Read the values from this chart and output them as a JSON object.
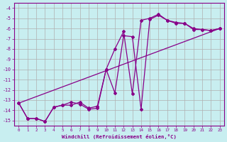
{
  "bg_color": "#c8eef0",
  "grid_color": "#b0b0b0",
  "line_color": "#880088",
  "xlabel": "Windchill (Refroidissement éolien,°C)",
  "ylabel_ticks": [
    -4,
    -5,
    -6,
    -7,
    -8,
    -9,
    -10,
    -11,
    -12,
    -13,
    -14,
    -15
  ],
  "xlim": [
    -0.5,
    23.5
  ],
  "ylim": [
    -15.5,
    -3.5
  ],
  "xticks": [
    0,
    1,
    2,
    3,
    4,
    5,
    6,
    7,
    8,
    9,
    10,
    11,
    12,
    13,
    14,
    15,
    16,
    17,
    18,
    19,
    20,
    21,
    22,
    23
  ],
  "line1_x": [
    0,
    1,
    2,
    3,
    4,
    5,
    6,
    7,
    8,
    9,
    10,
    11,
    12,
    13,
    14,
    15,
    16,
    17,
    18,
    19,
    20,
    21,
    22,
    23
  ],
  "line1_y": [
    -13.3,
    -14.8,
    -14.8,
    -15.1,
    -13.7,
    -13.5,
    -13.5,
    -13.2,
    -13.8,
    -13.6,
    -10.0,
    -8.0,
    -6.3,
    -12.4,
    -5.2,
    -5.0,
    -4.6,
    -5.2,
    -5.4,
    -5.5,
    -6.0,
    -6.1,
    -6.2,
    -6.0
  ],
  "line2_x": [
    0,
    1,
    2,
    3,
    4,
    5,
    6,
    7,
    8,
    9,
    10,
    11,
    12,
    13,
    14,
    15,
    16,
    17,
    18,
    19,
    20,
    21,
    22,
    23
  ],
  "line2_y": [
    -13.3,
    -14.8,
    -14.8,
    -15.1,
    -13.7,
    -13.5,
    -13.2,
    -13.4,
    -13.9,
    -13.8,
    -10.0,
    -12.3,
    -6.7,
    -6.8,
    -13.9,
    -5.1,
    -4.7,
    -5.2,
    -5.5,
    -5.5,
    -6.1,
    -6.1,
    -6.2,
    -6.0
  ],
  "line3_x": [
    0,
    23
  ],
  "line3_y": [
    -13.3,
    -6.0
  ]
}
